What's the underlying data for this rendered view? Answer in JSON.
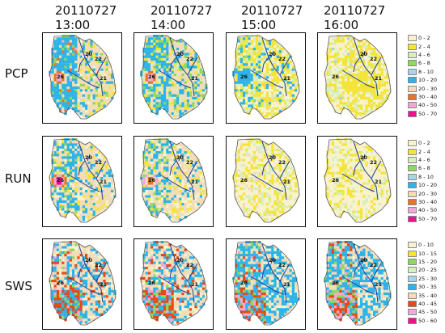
{
  "times": [
    {
      "date": "20110727",
      "hour": "13:00"
    },
    {
      "date": "20110727",
      "hour": "14:00"
    },
    {
      "date": "20110727",
      "hour": "15:00"
    },
    {
      "date": "20110727",
      "hour": "16:00"
    }
  ],
  "rows": [
    {
      "label": "PCP",
      "legend": [
        {
          "label": "0 - 2",
          "color": "#f8f2cc"
        },
        {
          "label": "2 - 4",
          "color": "#f4e438"
        },
        {
          "label": "4 - 6",
          "color": "#d8eec0"
        },
        {
          "label": "6 - 8",
          "color": "#8ed860"
        },
        {
          "label": "8 - 10",
          "color": "#a8d4e8"
        },
        {
          "label": "10 - 20",
          "color": "#2cb4e8"
        },
        {
          "label": "20 - 30",
          "color": "#f2dcb8"
        },
        {
          "label": "30 - 40",
          "color": "#e87428"
        },
        {
          "label": "40 - 50",
          "color": "#f0a8d8"
        },
        {
          "label": "50 - 70",
          "color": "#e8148c"
        }
      ]
    },
    {
      "label": "RUN",
      "legend": [
        {
          "label": "0 - 2",
          "color": "#f8f2cc"
        },
        {
          "label": "2 - 4",
          "color": "#f4e438"
        },
        {
          "label": "4 - 6",
          "color": "#d8eec0"
        },
        {
          "label": "6 - 8",
          "color": "#8ed860"
        },
        {
          "label": "8 - 10",
          "color": "#a8d4e8"
        },
        {
          "label": "10 - 20",
          "color": "#2cb4e8"
        },
        {
          "label": "20 - 30",
          "color": "#f2dcb8"
        },
        {
          "label": "30 - 40",
          "color": "#e87428"
        },
        {
          "label": "40 - 50",
          "color": "#f0a8d8"
        },
        {
          "label": "50 - 70",
          "color": "#e8148c"
        }
      ]
    },
    {
      "label": "SWS",
      "legend": [
        {
          "label": "0 - 10",
          "color": "#f8f2cc"
        },
        {
          "label": "10 - 15",
          "color": "#f4e438"
        },
        {
          "label": "15 - 20",
          "color": "#8ed860"
        },
        {
          "label": "20 - 25",
          "color": "#d8eec0"
        },
        {
          "label": "25 - 30",
          "color": "#a8d4e8"
        },
        {
          "label": "30 - 35",
          "color": "#2cb4e8"
        },
        {
          "label": "35 - 40",
          "color": "#f2dcb8"
        },
        {
          "label": "40 - 45",
          "color": "#e84818"
        },
        {
          "label": "45 - 50",
          "color": "#f0a8d8"
        },
        {
          "label": "50 - 60",
          "color": "#e8148c"
        }
      ]
    }
  ],
  "station_labels": [
    "20",
    "22",
    "21",
    "26"
  ]
}
